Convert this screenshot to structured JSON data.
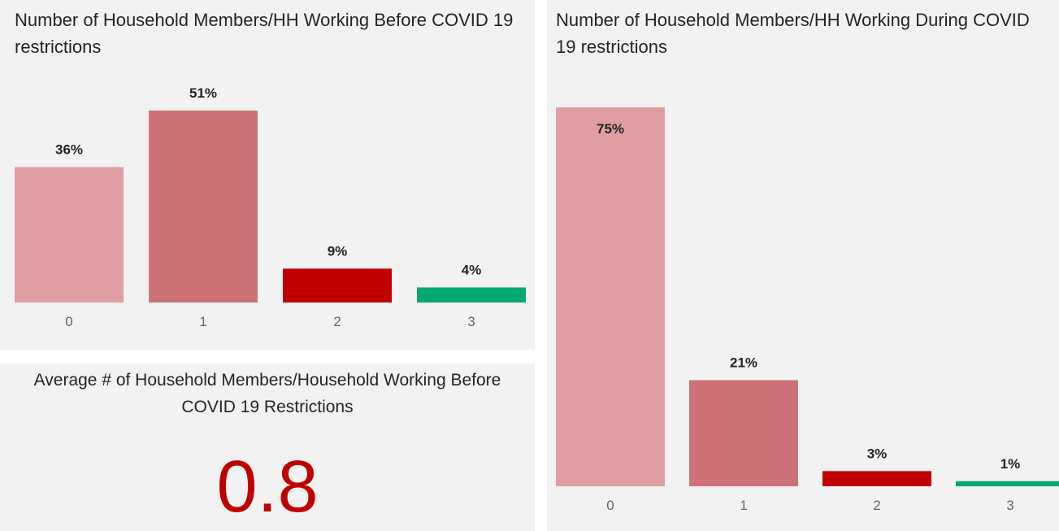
{
  "chart_data": [
    {
      "type": "bar",
      "title": "Number of Household Members/HH Working Before COVID 19 restrictions",
      "categories": [
        "0",
        "1",
        "2",
        "3"
      ],
      "values": [
        36,
        51,
        9,
        4
      ],
      "value_labels": [
        "36%",
        "51%",
        "9%",
        "4%"
      ],
      "colors": [
        "#e09ea2",
        "#cd7276",
        "#c00000",
        "#01a872"
      ]
    },
    {
      "type": "bar",
      "title": "Number of Household Members/HH Working During COVID 19 restrictions",
      "categories": [
        "0",
        "1",
        "2",
        "3"
      ],
      "values": [
        75,
        21,
        3,
        1
      ],
      "value_labels": [
        "75%",
        "21%",
        "3%",
        "1%"
      ],
      "colors": [
        "#e09ea2",
        "#cd7276",
        "#c00000",
        "#01a872"
      ]
    }
  ],
  "kpi_card": {
    "title": "Average # of Household Members/Household Working Before COVID 19 Restrictions",
    "value": 0.8
  }
}
